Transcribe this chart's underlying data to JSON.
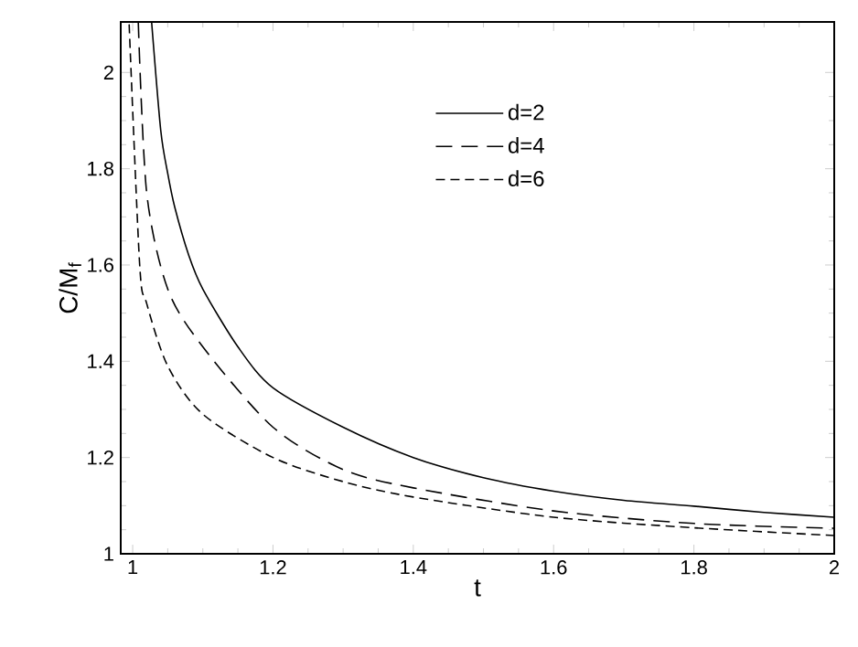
{
  "chart_data": {
    "type": "line",
    "xlabel": "t",
    "ylabel": "C/M$_{f}$",
    "xlim": [
      0.983,
      2.0
    ],
    "ylim": [
      1,
      2.105
    ],
    "xticks": [
      1,
      1.2,
      1.4,
      1.6,
      1.8,
      2
    ],
    "yticks": [
      1,
      1.2,
      1.4,
      1.6,
      1.8,
      2
    ],
    "legend": "top",
    "grid": false,
    "marker": "none",
    "series": [
      {
        "name": "d=2",
        "color": "#000000",
        "line_style": "solid",
        "x": [
          1.027,
          1.04,
          1.05,
          1.06,
          1.08,
          1.1,
          1.15,
          1.2,
          1.3,
          1.4,
          1.5,
          1.6,
          1.7,
          1.8,
          1.9,
          2.0
        ],
        "values": [
          2.105,
          1.88,
          1.79,
          1.72,
          1.62,
          1.55,
          1.43,
          1.345,
          1.263,
          1.2,
          1.158,
          1.13,
          1.111,
          1.099,
          1.086,
          1.076
        ]
      },
      {
        "name": "d=4",
        "color": "#000000",
        "line_style": "dashed",
        "x": [
          1.008,
          1.02,
          1.05,
          1.1,
          1.2,
          1.3,
          1.4,
          1.6,
          1.8,
          2.0
        ],
        "values": [
          2.105,
          1.75,
          1.55,
          1.43,
          1.263,
          1.175,
          1.137,
          1.089,
          1.063,
          1.053
        ]
      },
      {
        "name": "d=6",
        "color": "#000000",
        "line_style": "dashed",
        "x": [
          0.995,
          1.01,
          1.02,
          1.05,
          1.1,
          1.2,
          1.3,
          1.4,
          1.6,
          1.8,
          2.0
        ],
        "values": [
          2.1,
          1.6,
          1.52,
          1.39,
          1.29,
          1.2,
          1.15,
          1.118,
          1.076,
          1.054,
          1.038
        ]
      }
    ]
  }
}
